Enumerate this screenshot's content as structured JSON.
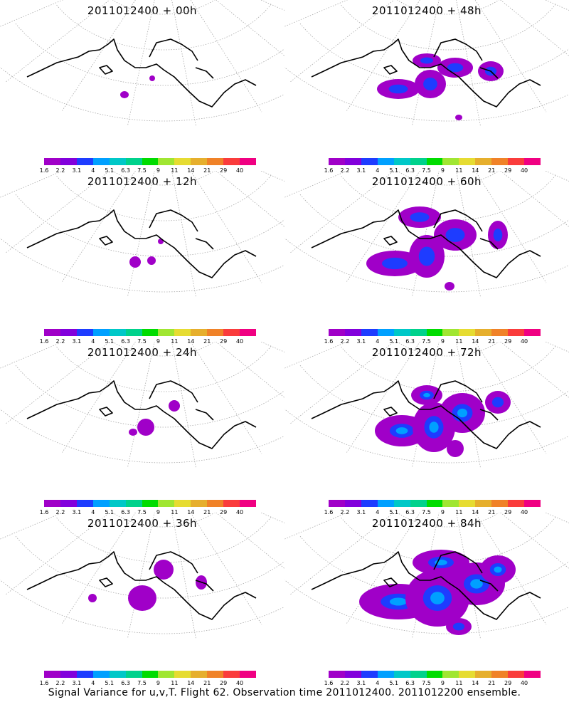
{
  "panels": [
    {
      "title": "2011012400 + 00h",
      "intensity": 0
    },
    {
      "title": "2011012400 + 48h",
      "intensity": 3
    },
    {
      "title": "2011012400 + 12h",
      "intensity": 1
    },
    {
      "title": "2011012400 + 60h",
      "intensity": 4
    },
    {
      "title": "2011012400 + 24h",
      "intensity": 1
    },
    {
      "title": "2011012400 + 72h",
      "intensity": 5
    },
    {
      "title": "2011012400 + 36h",
      "intensity": 2
    },
    {
      "title": "2011012400 + 84h",
      "intensity": 6
    }
  ],
  "colorbar": {
    "labels": [
      "1.6",
      "2.2",
      "3.1",
      "4",
      "5.1",
      "6.3",
      "7.5",
      "9",
      "11",
      "14",
      "21",
      "29",
      "40"
    ],
    "colors": [
      "#a000c8",
      "#8200dc",
      "#1e3cff",
      "#00a0ff",
      "#00c8c8",
      "#00d28c",
      "#00dc00",
      "#a0e632",
      "#e6dc32",
      "#e6af2d",
      "#f08228",
      "#fa3c3c",
      "#f00082"
    ]
  },
  "footer": "Signal Variance for u,v,T. Flight 62. Observation time 2011012400. 2011012200 ensemble."
}
